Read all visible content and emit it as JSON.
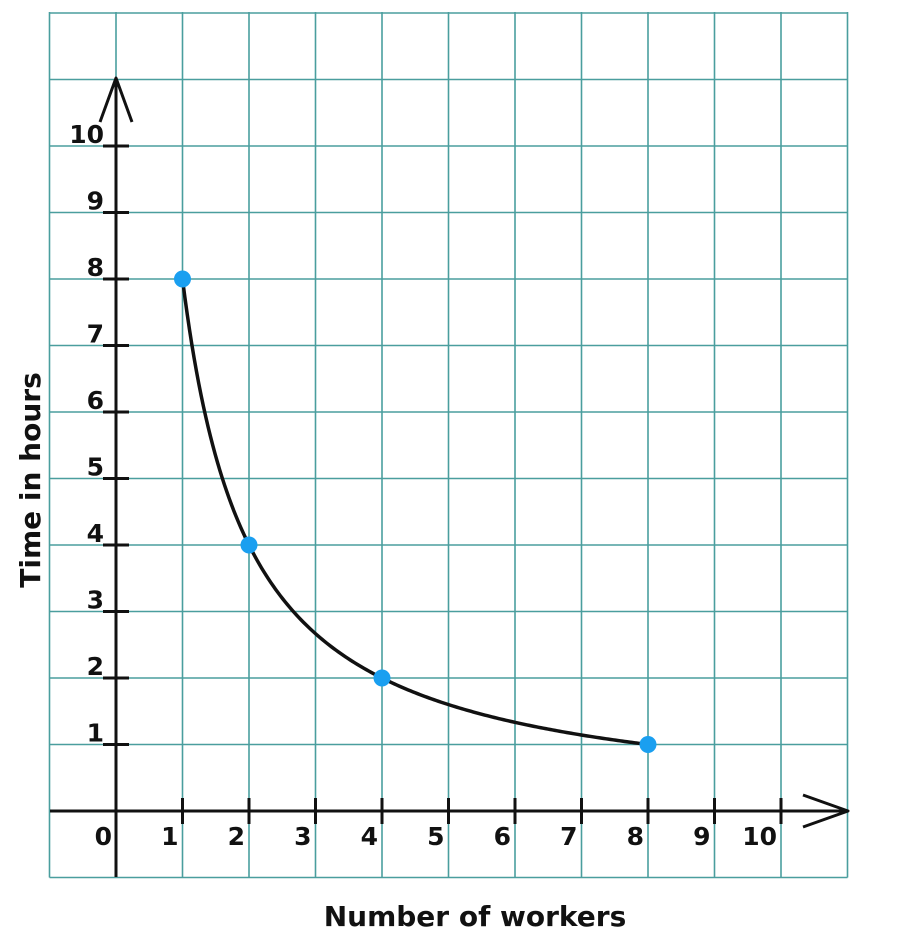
{
  "chart_data": {
    "type": "scatter",
    "title": "",
    "xlabel": "Number of workers",
    "ylabel": "Time in hours",
    "xlim": [
      -1,
      11
    ],
    "ylim": [
      -1,
      11
    ],
    "grid": true,
    "x_ticks": [
      0,
      1,
      2,
      3,
      4,
      5,
      6,
      7,
      8,
      9,
      10
    ],
    "y_ticks": [
      1,
      2,
      3,
      4,
      5,
      6,
      7,
      8,
      9,
      10
    ],
    "curve": {
      "relation": "y = 8 / x",
      "x_range": [
        1,
        8
      ]
    },
    "series": [
      {
        "x": [
          1,
          2,
          4,
          8
        ],
        "y": [
          8,
          4,
          2,
          1
        ]
      }
    ]
  },
  "colors": {
    "grid": "#4a9e9e",
    "axis": "#111111",
    "curve": "#111111",
    "point": "#1a9ff0"
  }
}
